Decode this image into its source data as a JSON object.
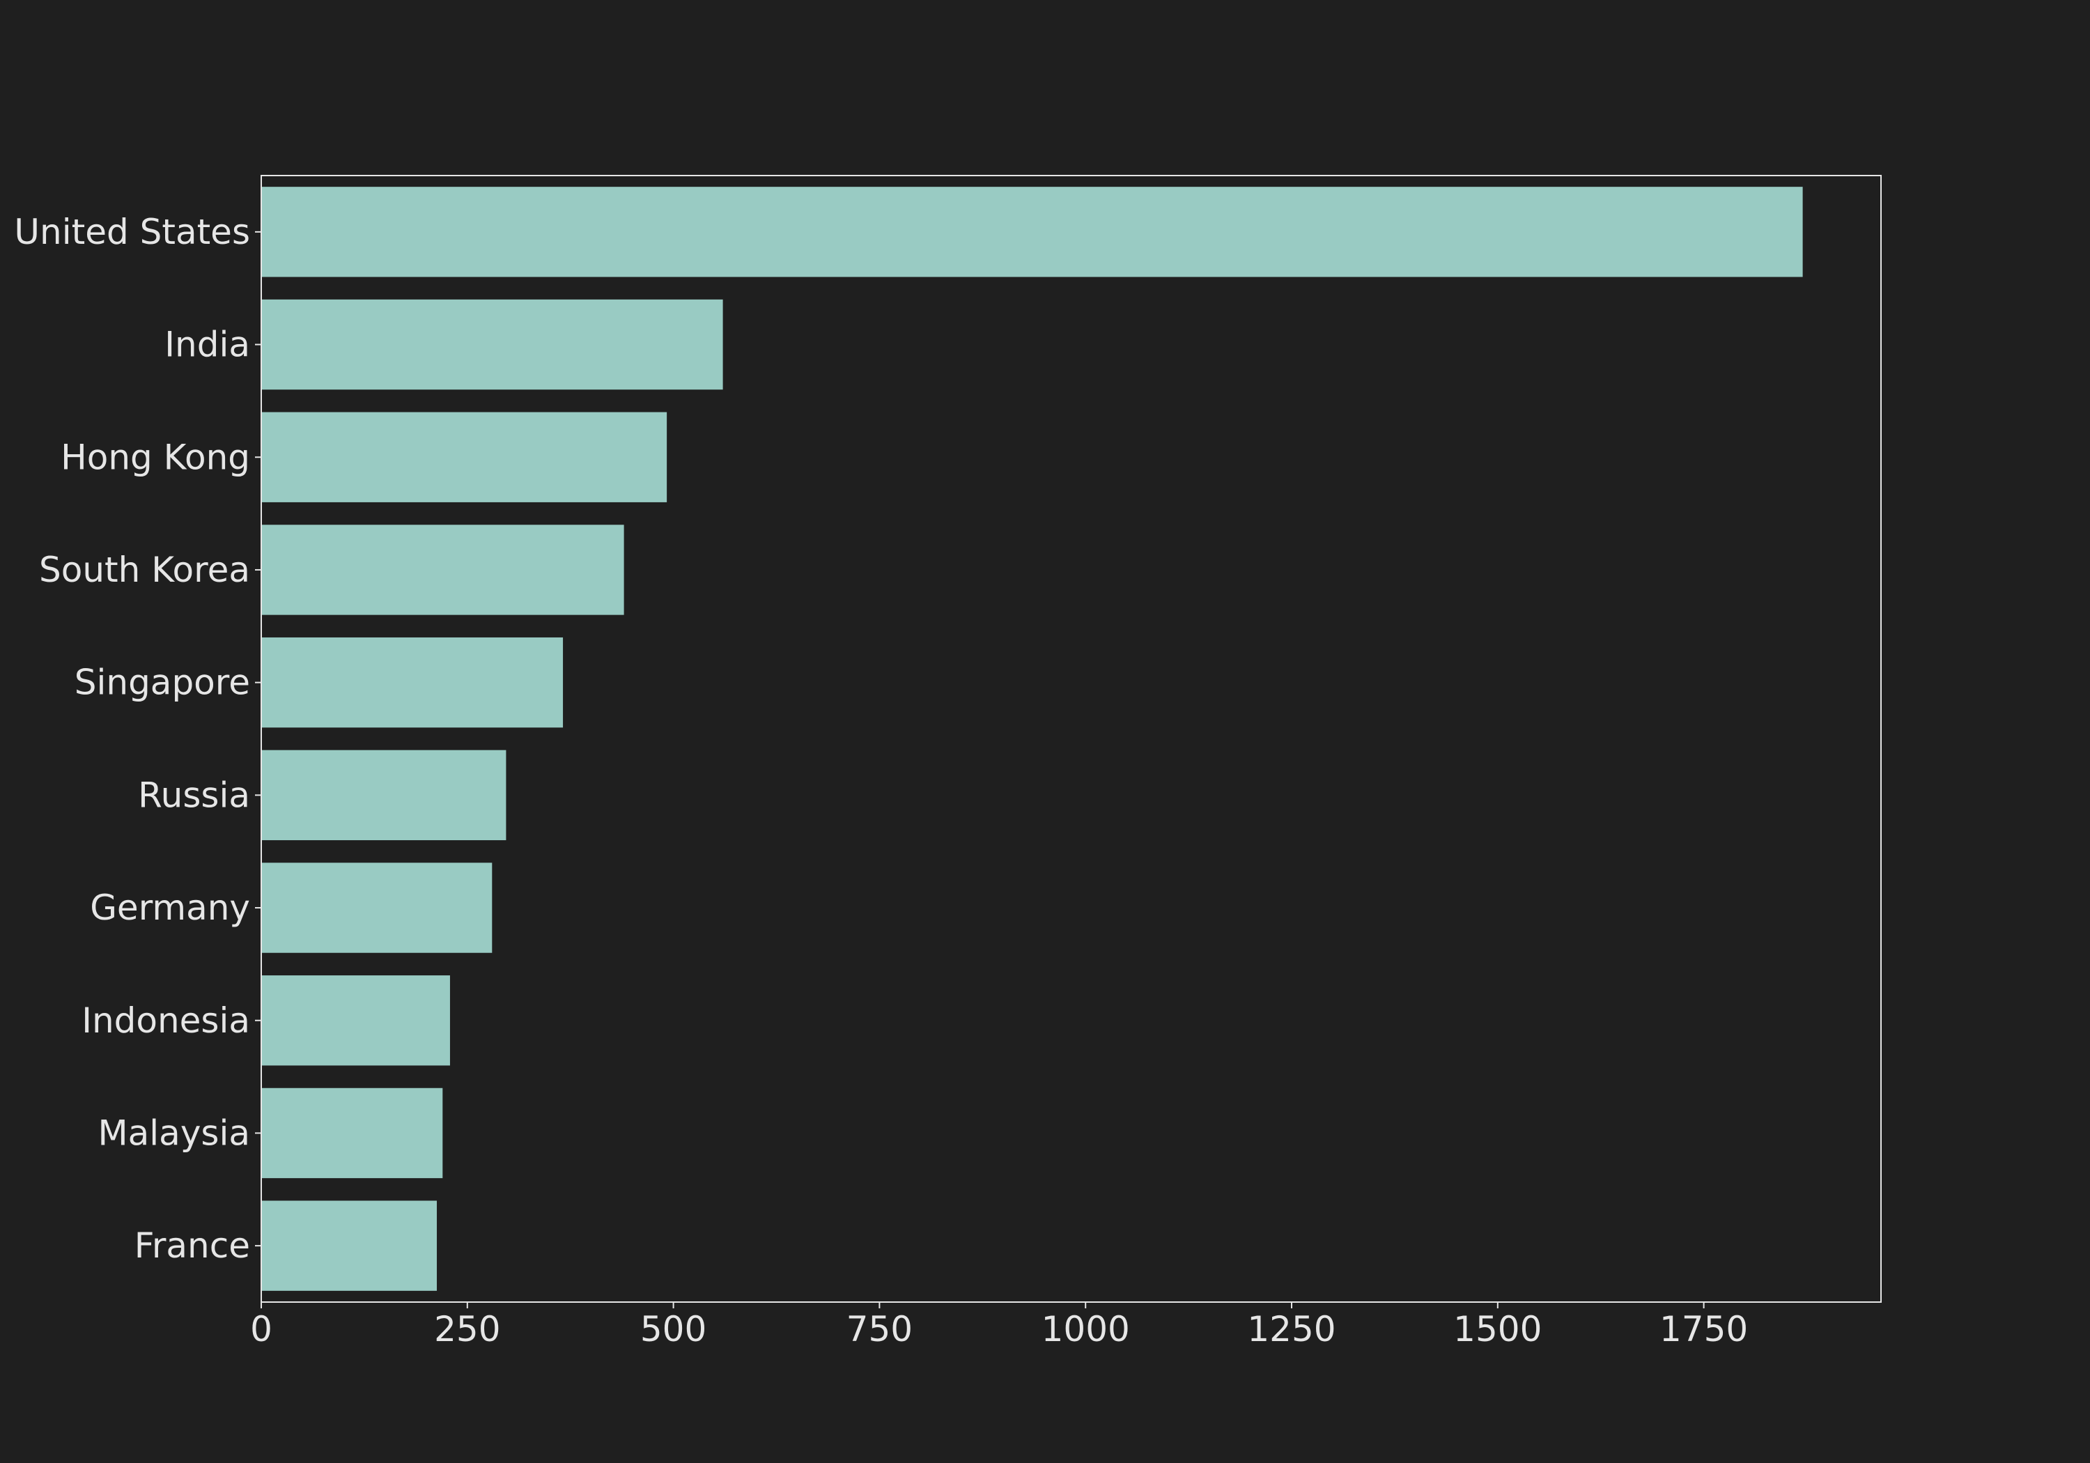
{
  "colors": {
    "background": "#1f1f1f",
    "bar": "#99cbc3",
    "axis": "#e6e6e6",
    "text": "#e6e6e6"
  },
  "chart_data": {
    "type": "bar",
    "orientation": "horizontal",
    "categories": [
      "United States",
      "India",
      "Hong Kong",
      "South Korea",
      "Singapore",
      "Russia",
      "Germany",
      "Indonesia",
      "Malaysia",
      "France"
    ],
    "values": [
      1870,
      560,
      492,
      440,
      366,
      297,
      280,
      229,
      220,
      213
    ],
    "title": "",
    "xlabel": "",
    "ylabel": "",
    "xlim": [
      0,
      1965
    ],
    "xticks": [
      0,
      250,
      500,
      750,
      1000,
      1250,
      1500,
      1750
    ],
    "xtick_labels": [
      "0",
      "250",
      "500",
      "750",
      "1000",
      "1250",
      "1500",
      "1750"
    ],
    "grid": false,
    "legend": "none"
  }
}
